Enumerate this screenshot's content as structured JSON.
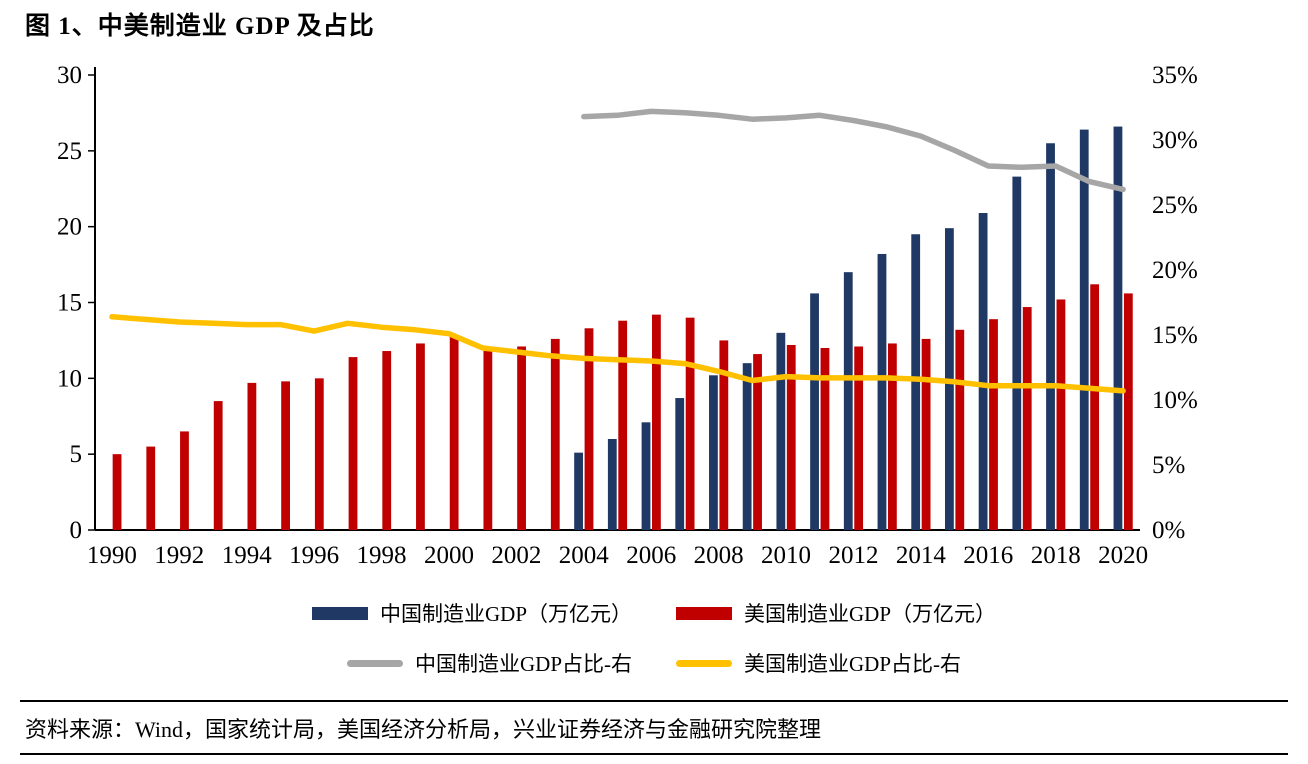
{
  "title": "图 1、中美制造业 GDP 及占比",
  "source": "资料来源：Wind，国家统计局，美国经济分析局，兴业证券经济与金融研究院整理",
  "colors": {
    "china_bar": "#1f3864",
    "us_bar": "#c00000",
    "china_line": "#a6a6a6",
    "us_line": "#ffc000",
    "title_rule": "#17375e"
  },
  "chart_data": {
    "type": "combo",
    "x": [
      1990,
      1991,
      1992,
      1993,
      1994,
      1995,
      1996,
      1997,
      1998,
      1999,
      2000,
      2001,
      2002,
      2003,
      2004,
      2005,
      2006,
      2007,
      2008,
      2009,
      2010,
      2011,
      2012,
      2013,
      2014,
      2015,
      2016,
      2017,
      2018,
      2019,
      2020
    ],
    "x_tick_every": 2,
    "left_axis": {
      "min": 0,
      "max": 30,
      "step": 5,
      "suffix": ""
    },
    "right_axis": {
      "min": 0,
      "max": 35,
      "step": 5,
      "suffix": "%"
    },
    "grid": false,
    "legend_position": "bottom",
    "series": [
      {
        "name": "中国制造业GDP（万亿元）",
        "type": "bar",
        "axis": "left",
        "color_key": "china_bar",
        "bar_slot": 0,
        "values": [
          null,
          null,
          null,
          null,
          null,
          null,
          null,
          null,
          null,
          null,
          null,
          null,
          null,
          null,
          5.1,
          6.0,
          7.1,
          8.7,
          10.2,
          11.0,
          13.0,
          15.6,
          17.0,
          18.2,
          19.5,
          19.9,
          20.9,
          23.3,
          25.5,
          26.4,
          26.6
        ]
      },
      {
        "name": "美国制造业GDP（万亿元）",
        "type": "bar",
        "axis": "left",
        "color_key": "us_bar",
        "bar_slot": 1,
        "values": [
          5.0,
          5.5,
          6.5,
          8.5,
          9.7,
          9.8,
          10.0,
          11.4,
          11.8,
          12.3,
          12.8,
          11.8,
          12.1,
          12.6,
          13.3,
          13.8,
          14.2,
          14.0,
          12.5,
          11.6,
          12.2,
          12.0,
          12.1,
          12.3,
          12.6,
          13.2,
          13.9,
          14.7,
          15.2,
          16.2,
          15.6
        ]
      },
      {
        "name": "中国制造业GDP占比-右",
        "type": "line",
        "axis": "right",
        "color_key": "china_line",
        "values": [
          null,
          null,
          null,
          null,
          null,
          null,
          null,
          null,
          null,
          null,
          null,
          null,
          null,
          null,
          31.8,
          31.9,
          32.2,
          32.1,
          31.9,
          31.6,
          31.7,
          31.9,
          31.5,
          31.0,
          30.3,
          29.2,
          28.0,
          27.9,
          28.0,
          26.8,
          26.2
        ]
      },
      {
        "name": "美国制造业GDP占比-右",
        "type": "line",
        "axis": "right",
        "color_key": "us_line",
        "values": [
          16.4,
          16.2,
          16.0,
          15.9,
          15.8,
          15.8,
          15.3,
          15.9,
          15.6,
          15.4,
          15.1,
          14.0,
          13.7,
          13.4,
          13.2,
          13.1,
          13.0,
          12.8,
          12.2,
          11.5,
          11.8,
          11.7,
          11.7,
          11.7,
          11.6,
          11.4,
          11.1,
          11.1,
          11.1,
          10.9,
          10.7
        ]
      }
    ]
  }
}
